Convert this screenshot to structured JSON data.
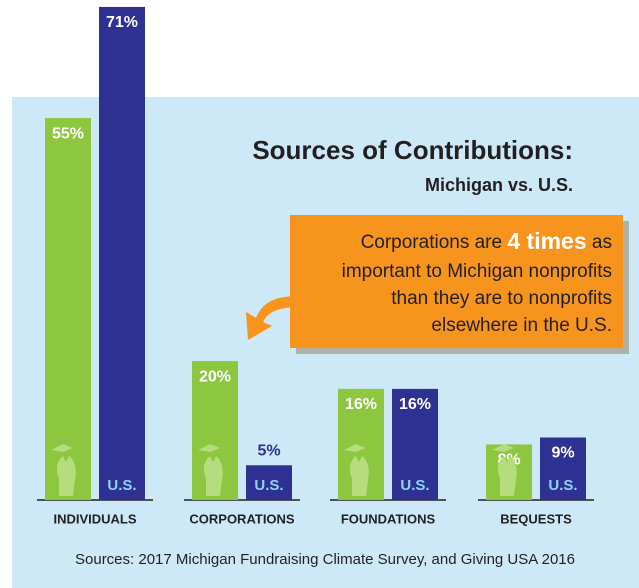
{
  "chart_data": {
    "type": "bar",
    "title": "Sources of Contributions:",
    "subtitle": "Michigan vs. U.S.",
    "categories": [
      "INDIVIDUALS",
      "CORPORATIONS",
      "FOUNDATIONS",
      "BEQUESTS"
    ],
    "series": [
      {
        "color": "#8dc63f",
        "values": [
          55,
          20,
          16,
          8
        ],
        "value_labels": [
          "55%",
          "20%",
          "16%",
          "8%"
        ]
      },
      {
        "name": "U.S.",
        "color": "#2e3192",
        "values": [
          71,
          5,
          16,
          9
        ],
        "value_labels": [
          "71%",
          "5%",
          "16%",
          "9%"
        ]
      }
    ],
    "ylim": [
      0,
      72
    ],
    "annotation": {
      "lead": "Corporations are",
      "emphasis": "4 times",
      "tail": "as",
      "lines": [
        "important to Michigan nonprofits",
        "than they are to nonprofits",
        "elsewhere in the U.S."
      ]
    },
    "source": "Sources: 2017 Michigan Fundraising Climate Survey, and Giving USA 2016"
  }
}
